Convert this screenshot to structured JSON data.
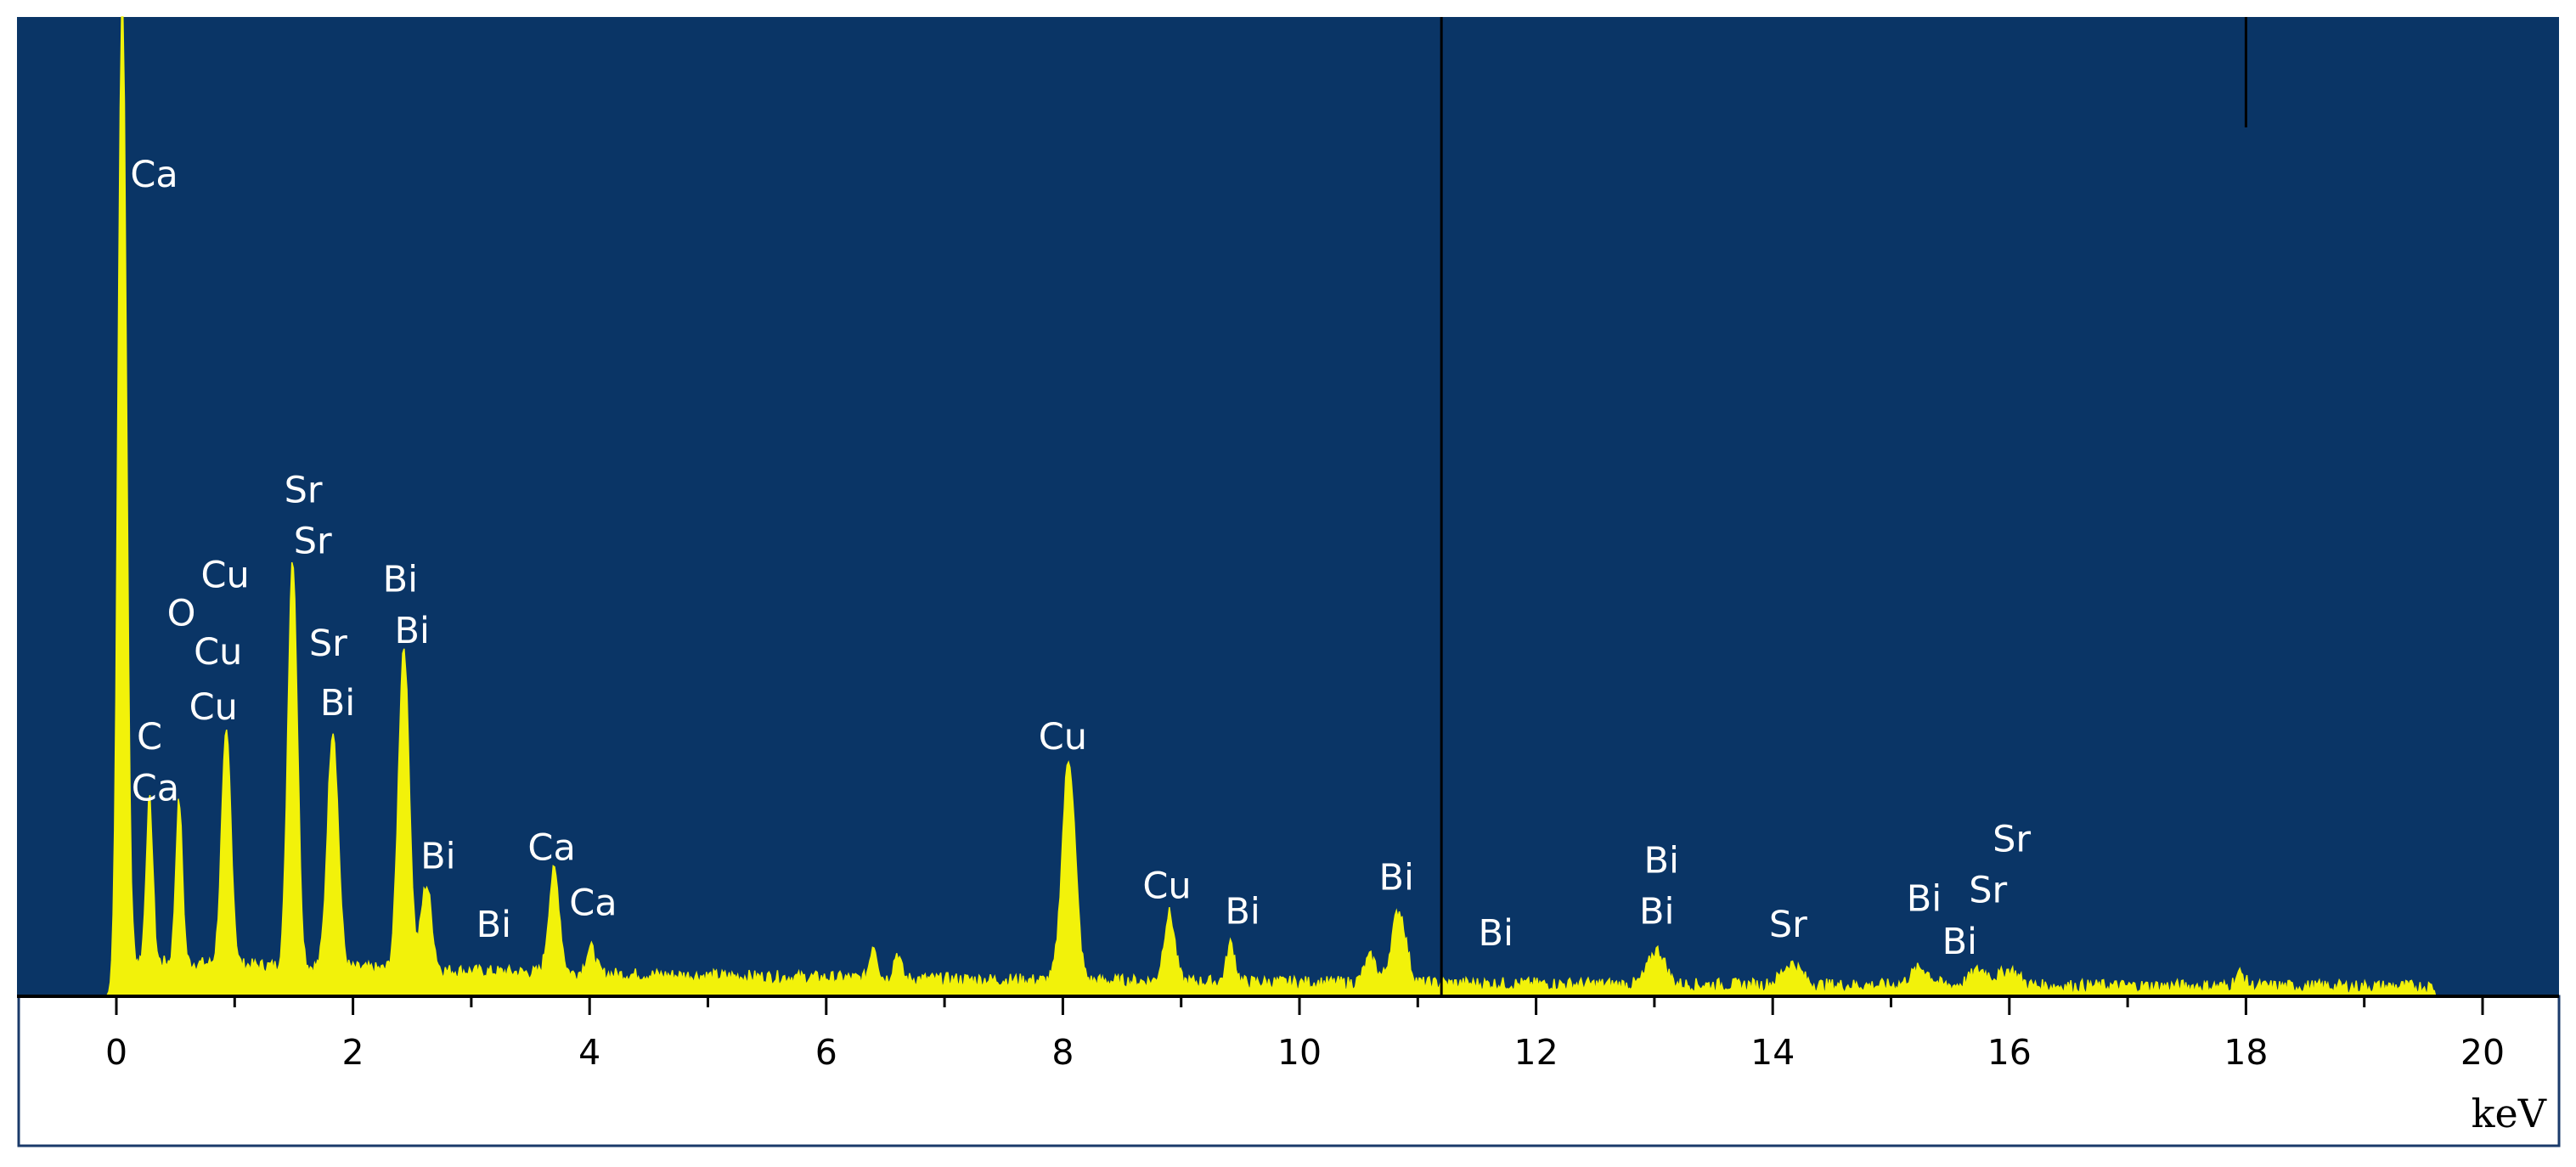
{
  "chart_data": {
    "type": "line",
    "title": "",
    "xlabel": "keV",
    "ylabel": "",
    "xlim": [
      0,
      20
    ],
    "ylim": [
      0,
      100
    ],
    "x_ticks": [
      "0",
      "2",
      "4",
      "6",
      "8",
      "10",
      "12",
      "14",
      "16",
      "18",
      "20"
    ],
    "grid": false,
    "legend": "none",
    "colors": {
      "plot_background": "#0a3566",
      "spectrum": "#f2f20a",
      "labels": "#ffffff"
    },
    "markers_keV": [
      11.2,
      18.0
    ],
    "peaks": [
      {
        "x": 0.05,
        "y": 115,
        "w": 0.035
      },
      {
        "x": 0.28,
        "y": 19,
        "w": 0.028
      },
      {
        "x": 0.53,
        "y": 19,
        "w": 0.028
      },
      {
        "x": 0.93,
        "y": 27,
        "w": 0.04
      },
      {
        "x": 1.49,
        "y": 48,
        "w": 0.04
      },
      {
        "x": 1.83,
        "y": 28,
        "w": 0.045
      },
      {
        "x": 2.43,
        "y": 38,
        "w": 0.045
      },
      {
        "x": 2.62,
        "y": 10,
        "w": 0.045
      },
      {
        "x": 3.7,
        "y": 12,
        "w": 0.045
      },
      {
        "x": 4.01,
        "y": 3,
        "w": 0.04
      },
      {
        "x": 6.4,
        "y": 4,
        "w": 0.03
      },
      {
        "x": 6.6,
        "y": 3,
        "w": 0.03
      },
      {
        "x": 8.05,
        "y": 26,
        "w": 0.055
      },
      {
        "x": 8.9,
        "y": 8,
        "w": 0.045
      },
      {
        "x": 9.42,
        "y": 4.5,
        "w": 0.035
      },
      {
        "x": 10.84,
        "y": 8.5,
        "w": 0.06
      },
      {
        "x": 10.6,
        "y": 3,
        "w": 0.05
      },
      {
        "x": 13.02,
        "y": 4,
        "w": 0.07
      },
      {
        "x": 14.16,
        "y": 2.5,
        "w": 0.08
      },
      {
        "x": 15.25,
        "y": 2,
        "w": 0.08
      },
      {
        "x": 15.75,
        "y": 1.8,
        "w": 0.08
      },
      {
        "x": 16.0,
        "y": 1.8,
        "w": 0.08
      },
      {
        "x": 17.95,
        "y": 1.5,
        "w": 0.04
      }
    ],
    "annotations": [
      {
        "text": "Ca",
        "x": 0.32,
        "y": 95
      },
      {
        "text": "Sr",
        "x": 1.58,
        "y": 58
      },
      {
        "text": "Sr",
        "x": 1.66,
        "y": 52
      },
      {
        "text": "Cu",
        "x": 0.92,
        "y": 48
      },
      {
        "text": "Bi",
        "x": 2.4,
        "y": 47.5
      },
      {
        "text": "O",
        "x": 0.55,
        "y": 43.5
      },
      {
        "text": "Bi",
        "x": 2.5,
        "y": 41.5
      },
      {
        "text": "Cu",
        "x": 0.86,
        "y": 39
      },
      {
        "text": "Sr",
        "x": 1.79,
        "y": 40
      },
      {
        "text": "Bi",
        "x": 1.87,
        "y": 33
      },
      {
        "text": "Cu",
        "x": 0.82,
        "y": 32.5
      },
      {
        "text": "C",
        "x": 0.28,
        "y": 29
      },
      {
        "text": "Ca",
        "x": 0.33,
        "y": 23
      },
      {
        "text": "Cu",
        "x": 8.0,
        "y": 29
      },
      {
        "text": "Ca",
        "x": 3.68,
        "y": 16
      },
      {
        "text": "Bi",
        "x": 2.72,
        "y": 15
      },
      {
        "text": "Ca",
        "x": 4.03,
        "y": 9.5
      },
      {
        "text": "Cu",
        "x": 8.88,
        "y": 11.5
      },
      {
        "text": "Bi",
        "x": 10.82,
        "y": 12.5
      },
      {
        "text": "Bi",
        "x": 3.19,
        "y": 7
      },
      {
        "text": "Bi",
        "x": 9.52,
        "y": 8.5
      },
      {
        "text": "Bi",
        "x": 13.06,
        "y": 14.5
      },
      {
        "text": "Bi",
        "x": 13.02,
        "y": 8.5
      },
      {
        "text": "Sr",
        "x": 16.02,
        "y": 17
      },
      {
        "text": "Sr",
        "x": 15.82,
        "y": 11
      },
      {
        "text": "Bi",
        "x": 15.28,
        "y": 10
      },
      {
        "text": "Sr",
        "x": 14.13,
        "y": 7
      },
      {
        "text": "Bi",
        "x": 15.58,
        "y": 5
      },
      {
        "text": "Bi",
        "x": 11.66,
        "y": 6
      }
    ]
  }
}
